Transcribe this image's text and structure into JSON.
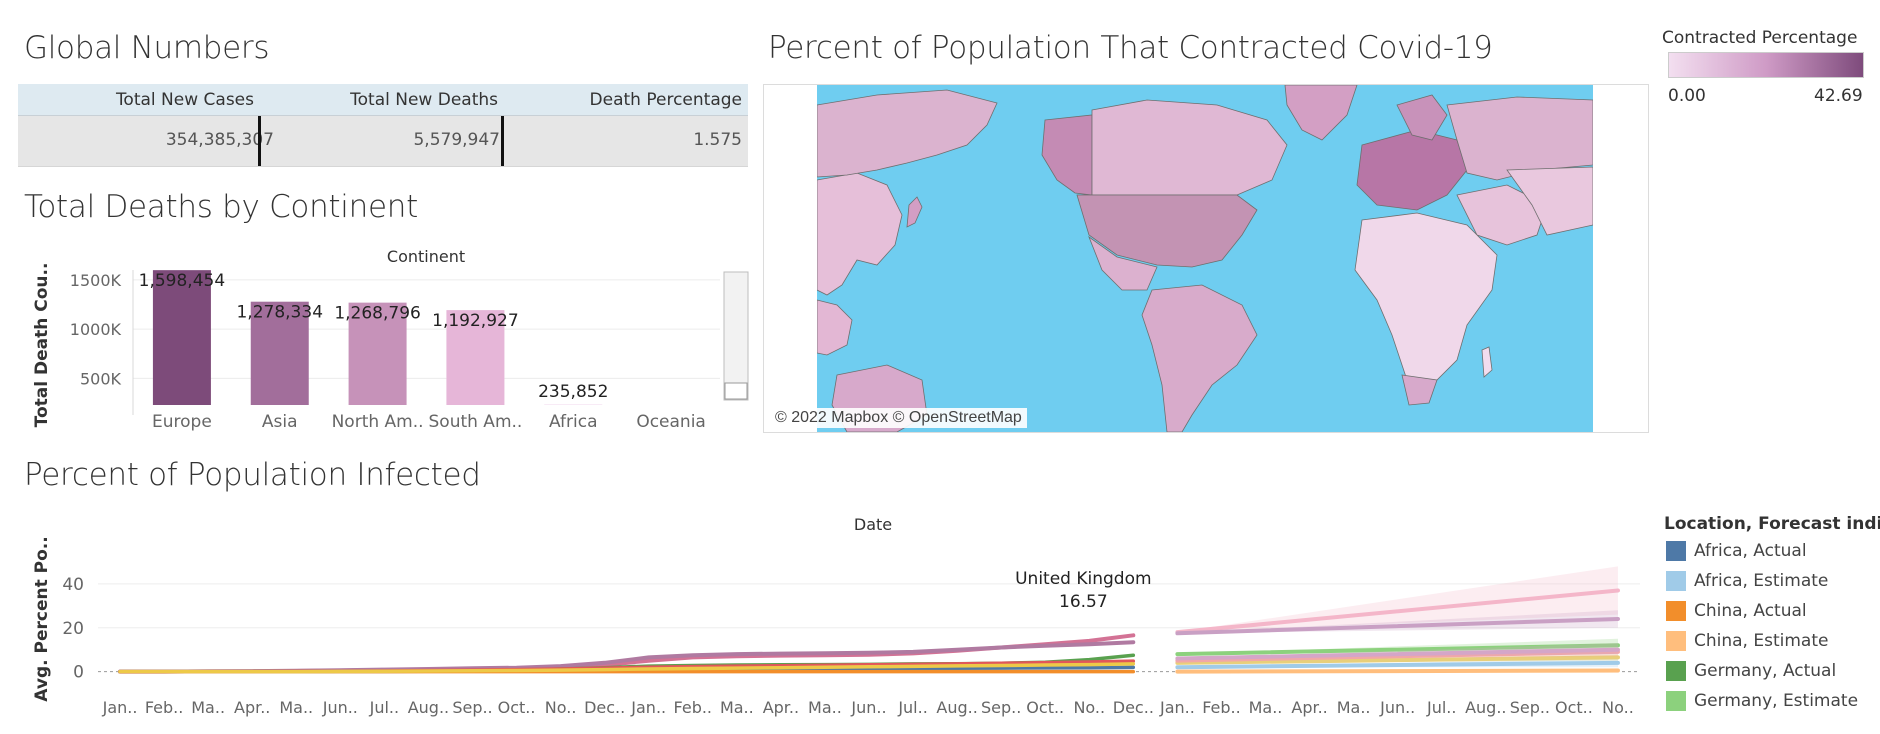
{
  "sections": {
    "global": "Global Numbers",
    "deaths": "Total Deaths by Continent",
    "map": "Percent of Population That Contracted Covid-19",
    "infected": "Percent of Population Infected"
  },
  "kpi": {
    "headers": [
      "Total New Cases",
      "Total New Deaths",
      "Death Percentage"
    ],
    "values": [
      "354,385,307",
      "5,579,947",
      "1.575"
    ]
  },
  "map_legend": {
    "title": "Contracted Percentage",
    "min": "0.00",
    "max": "42.69"
  },
  "map_attribution": "© 2022 Mapbox © OpenStreetMap",
  "location_legend": {
    "title": "Location, Forecast indi..",
    "items": [
      {
        "label": "Africa, Actual",
        "color": "#4e79a7"
      },
      {
        "label": "Africa, Estimate",
        "color": "#a0cbe8"
      },
      {
        "label": "China, Actual",
        "color": "#f28e2b"
      },
      {
        "label": "China, Estimate",
        "color": "#ffbe7d"
      },
      {
        "label": "Germany, Actual",
        "color": "#59a14f"
      },
      {
        "label": "Germany, Estimate",
        "color": "#8cd17d"
      }
    ]
  },
  "chart_data": [
    {
      "type": "bar",
      "title": "Continent",
      "ylabel": "Total Death Cou..",
      "categories": [
        "Europe",
        "Asia",
        "North Am..",
        "South Am..",
        "Africa",
        "Oceania"
      ],
      "values": [
        1598454,
        1278334,
        1268796,
        1192927,
        235852,
        0
      ],
      "labels": [
        "1,598,454",
        "1,278,334",
        "1,268,796",
        "1,192,927",
        "235,852",
        ""
      ],
      "colors": [
        "#7d4b7a",
        "#a26e9b",
        "#c692b9",
        "#e6b6d8",
        "#f2dcee",
        "#f5e6f1"
      ],
      "y_ticks": [
        "500K",
        "1000K",
        "1500K"
      ],
      "y_tick_values": [
        500000,
        1000000,
        1500000
      ],
      "ylim": [
        230000,
        1600000
      ]
    },
    {
      "type": "line",
      "title": "Date",
      "ylabel": "Avg. Percent Po..",
      "x_ticks": [
        "Jan..",
        "Feb..",
        "Ma..",
        "Apr..",
        "Ma..",
        "Jun..",
        "Jul..",
        "Aug..",
        "Sep..",
        "Oct..",
        "No..",
        "Dec..",
        "Jan..",
        "Feb..",
        "Ma..",
        "Apr..",
        "Ma..",
        "Jun..",
        "Jul..",
        "Aug..",
        "Sep..",
        "Oct..",
        "No..",
        "Dec..",
        "Jan..",
        "Feb..",
        "Ma..",
        "Apr..",
        "Ma..",
        "Jun..",
        "Jul..",
        "Aug..",
        "Sep..",
        "Oct..",
        "No.."
      ],
      "y_ticks": [
        0,
        20,
        40
      ],
      "ylim": [
        -2,
        50
      ],
      "annotation": {
        "label": "United Kingdom",
        "value": "16.57"
      },
      "series": [
        {
          "color": "#d37295",
          "values": [
            0,
            0,
            0.1,
            0.2,
            0.3,
            0.5,
            0.7,
            0.9,
            1.1,
            1.3,
            1.8,
            3.0,
            5.0,
            6.5,
            7.0,
            7.3,
            7.5,
            7.7,
            8.3,
            9.5,
            11.0,
            12.5,
            14.0,
            16.57
          ]
        },
        {
          "color": "#b07aa1",
          "values": [
            0,
            0,
            0.1,
            0.2,
            0.4,
            0.6,
            0.9,
            1.2,
            1.5,
            1.8,
            2.5,
            4.0,
            6.5,
            7.5,
            8.0,
            8.2,
            8.4,
            8.6,
            9.0,
            10.0,
            11.0,
            11.8,
            12.5,
            13.4
          ]
        },
        {
          "color": "#59a14f",
          "values": [
            0,
            0,
            0,
            0,
            0,
            0.1,
            0.1,
            0.2,
            0.3,
            0.5,
            1.2,
            1.8,
            2.5,
            2.8,
            3.0,
            3.1,
            3.2,
            3.3,
            3.5,
            3.6,
            3.8,
            4.3,
            5.5,
            7.5
          ]
        },
        {
          "color": "#4e79a7",
          "values": [
            0,
            0,
            0,
            0,
            0,
            0.1,
            0.1,
            0.2,
            0.2,
            0.3,
            0.4,
            0.5,
            0.6,
            0.7,
            0.8,
            0.9,
            1.0,
            1.1,
            1.3,
            1.5,
            1.6,
            1.7,
            1.8,
            1.9
          ]
        },
        {
          "color": "#f28e2b",
          "values": [
            0,
            0,
            0,
            0,
            0,
            0,
            0,
            0,
            0,
            0,
            0,
            0,
            0,
            0,
            0,
            0,
            0,
            0,
            0,
            0,
            0,
            0,
            0,
            0
          ]
        },
        {
          "color": "#e15759",
          "values": [
            0,
            0,
            0,
            0,
            0.1,
            0.2,
            0.3,
            0.5,
            0.7,
            0.9,
            1.2,
            1.6,
            2.0,
            2.3,
            2.5,
            2.7,
            2.9,
            3.1,
            3.3,
            3.5,
            3.8,
            4.1,
            4.4,
            4.8
          ]
        },
        {
          "color": "#edc948",
          "values": [
            0,
            0,
            0,
            0,
            0,
            0.1,
            0.2,
            0.3,
            0.4,
            0.5,
            0.7,
            0.9,
            1.2,
            1.4,
            1.6,
            1.8,
            2.0,
            2.2,
            2.4,
            2.6,
            2.8,
            3.0,
            3.2,
            3.5
          ]
        }
      ],
      "forecast": [
        {
          "color": "#f4b6c9",
          "values": [
            18,
            37
          ],
          "band": [
            48,
            26
          ]
        },
        {
          "color": "#c9a0c4",
          "values": [
            17.5,
            24
          ],
          "band": [
            28,
            20
          ]
        },
        {
          "color": "#8cd17d",
          "values": [
            8,
            12
          ],
          "band": [
            15,
            9
          ]
        },
        {
          "color": "#a0cbe8",
          "values": [
            2,
            4
          ],
          "band": [
            6,
            2
          ]
        },
        {
          "color": "#ffbe7d",
          "values": [
            0,
            0.5
          ],
          "band": [
            1.5,
            -0.5
          ]
        },
        {
          "color": "#e8cf7a",
          "values": [
            4,
            6.5
          ],
          "band": [
            8,
            5
          ]
        },
        {
          "color": "#f1a7a8",
          "values": [
            5,
            9
          ],
          "band": [
            11,
            7
          ]
        },
        {
          "color": "#d4a6c8",
          "values": [
            6,
            10
          ],
          "band": [
            13,
            8
          ]
        }
      ]
    }
  ]
}
